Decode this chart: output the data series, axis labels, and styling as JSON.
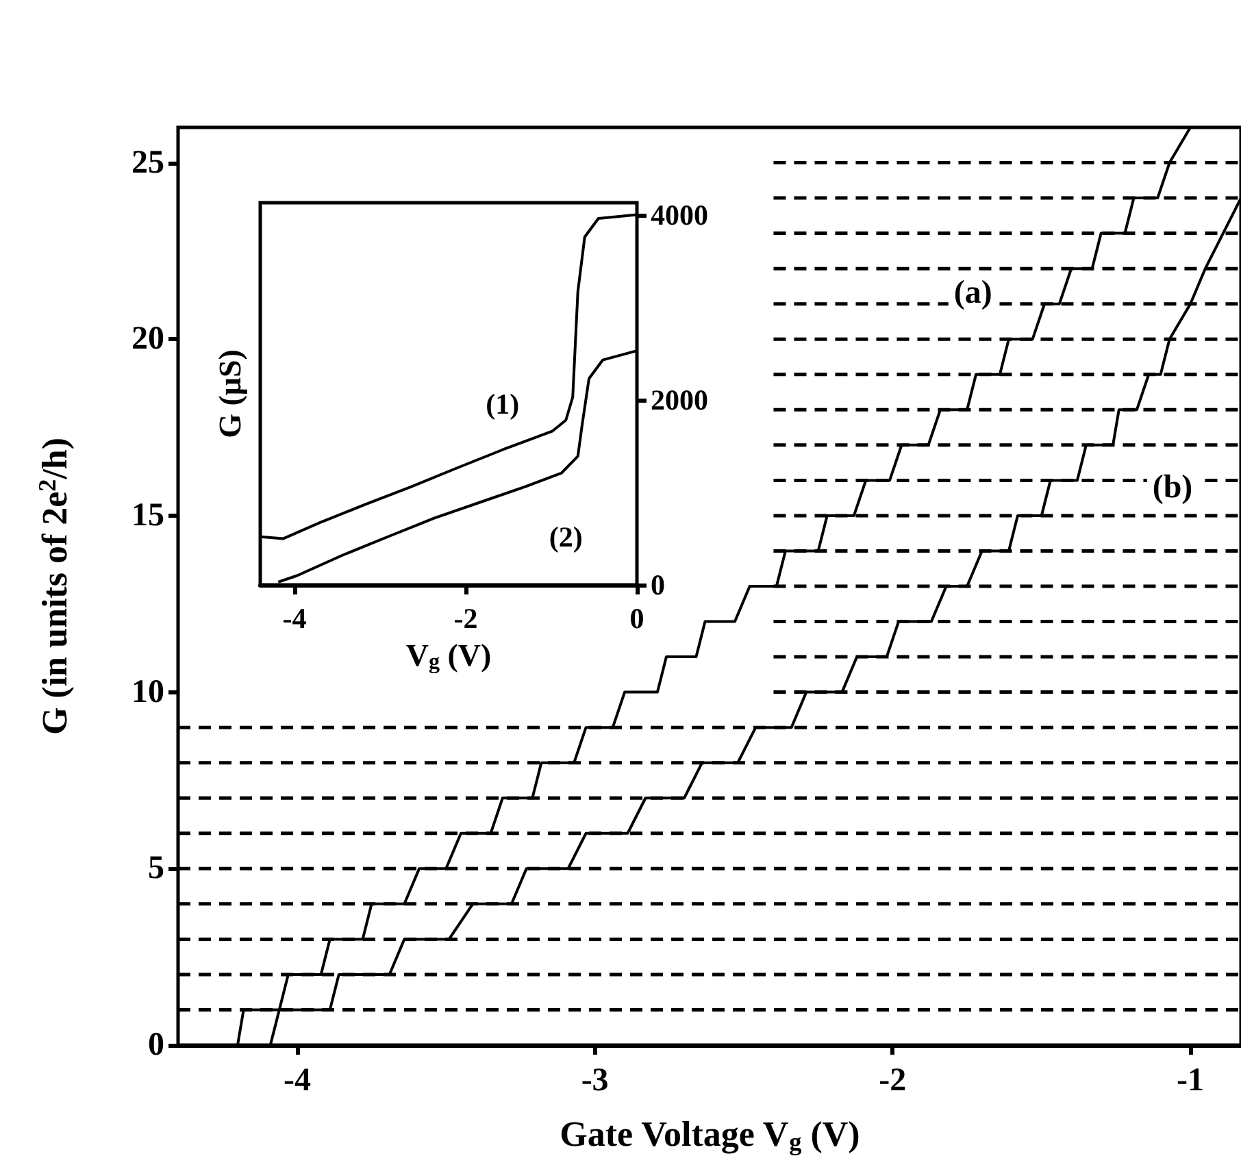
{
  "chart_data": [
    {
      "type": "line",
      "xlabel": "Gate Voltage V$_{g}$ (V)",
      "ylabel": "G (in units of 2e$^{2}$/h)",
      "xlim": [
        -4.4,
        -0.83
      ],
      "xticks": [
        -4,
        -3,
        -2,
        -1
      ],
      "ylim": [
        0,
        26
      ],
      "yticks": [
        0,
        5,
        10,
        15,
        20,
        25
      ],
      "line_style": "solid",
      "annotations": [
        {
          "text": "(a)",
          "x": -1.73,
          "y": 21.3
        },
        {
          "text": "(b)",
          "x": -1.06,
          "y": 15.8
        }
      ],
      "series": [
        {
          "color": "#000000",
          "x": [
            -4.2,
            -4.18,
            -4.06,
            -4.03,
            -3.92,
            -3.89,
            -3.78,
            -3.75,
            -3.64,
            -3.59,
            -3.5,
            -3.45,
            -3.35,
            -3.31,
            -3.21,
            -3.18,
            -3.07,
            -3.03,
            -2.94,
            -2.9,
            -2.79,
            -2.76,
            -2.66,
            -2.63,
            -2.53,
            -2.48,
            -2.39,
            -2.36,
            -2.25,
            -2.22,
            -2.13,
            -2.09,
            -2.01,
            -1.97,
            -1.88,
            -1.84,
            -1.75,
            -1.72,
            -1.64,
            -1.61,
            -1.53,
            -1.49,
            -1.44,
            -1.4,
            -1.33,
            -1.3,
            -1.22,
            -1.19,
            -1.11,
            -1.07,
            -1.0
          ],
          "values": [
            0,
            1,
            1,
            2,
            2,
            3,
            3,
            4,
            4,
            5,
            5,
            6,
            6,
            7,
            7,
            8,
            8,
            9,
            9,
            10,
            10,
            11,
            11,
            12,
            12,
            13,
            13,
            14,
            14,
            15,
            15,
            16,
            16,
            17,
            17,
            18,
            18,
            19,
            19,
            20,
            20,
            21,
            21,
            22,
            22,
            23,
            23,
            24,
            24,
            25,
            26
          ]
        },
        {
          "color": "#000000",
          "x": [
            -4.09,
            -4.06,
            -3.89,
            -3.86,
            -3.69,
            -3.64,
            -3.49,
            -3.41,
            -3.28,
            -3.23,
            -3.09,
            -3.03,
            -2.89,
            -2.83,
            -2.7,
            -2.64,
            -2.52,
            -2.46,
            -2.34,
            -2.29,
            -2.17,
            -2.12,
            -2.02,
            -1.98,
            -1.87,
            -1.82,
            -1.75,
            -1.7,
            -1.61,
            -1.58,
            -1.5,
            -1.47,
            -1.38,
            -1.35,
            -1.26,
            -1.24,
            -1.18,
            -1.14,
            -1.1,
            -1.07,
            -1.0,
            -0.95,
            -0.89,
            -0.83
          ],
          "values": [
            0,
            1,
            1,
            2,
            2,
            3,
            3,
            4,
            4,
            5,
            5,
            6,
            6,
            7,
            7,
            8,
            8,
            9,
            9,
            10,
            10,
            11,
            11,
            12,
            12,
            13,
            13,
            14,
            14,
            15,
            15,
            16,
            16,
            17,
            17,
            18,
            18,
            19,
            19,
            20,
            21,
            22,
            23,
            24
          ]
        },
        {
          "color": "#000000",
          "line_style": "dashed",
          "x": [
            -4.4,
            -0.83
          ],
          "values": [
            1,
            1
          ]
        },
        {
          "color": "#000000",
          "line_style": "dashed",
          "x": [
            -4.4,
            -0.83
          ],
          "values": [
            2,
            2
          ]
        },
        {
          "color": "#000000",
          "line_style": "dashed",
          "x": [
            -4.4,
            -0.83
          ],
          "values": [
            3,
            3
          ]
        },
        {
          "color": "#000000",
          "line_style": "dashed",
          "x": [
            -4.4,
            -0.83
          ],
          "values": [
            4,
            4
          ]
        },
        {
          "color": "#000000",
          "line_style": "dashed",
          "x": [
            -4.4,
            -0.83
          ],
          "values": [
            5,
            5
          ]
        },
        {
          "color": "#000000",
          "line_style": "dashed",
          "x": [
            -4.4,
            -0.83
          ],
          "values": [
            6,
            6
          ]
        },
        {
          "color": "#000000",
          "line_style": "dashed",
          "x": [
            -4.4,
            -0.83
          ],
          "values": [
            7,
            7
          ]
        },
        {
          "color": "#000000",
          "line_style": "dashed",
          "x": [
            -4.4,
            -0.83
          ],
          "values": [
            8,
            8
          ]
        },
        {
          "color": "#000000",
          "line_style": "dashed",
          "x": [
            -4.4,
            -0.83
          ],
          "values": [
            9,
            9
          ]
        },
        {
          "color": "#000000",
          "line_style": "dashed",
          "x": [
            -2.4,
            -0.83
          ],
          "values": [
            10,
            10
          ]
        },
        {
          "color": "#000000",
          "line_style": "dashed",
          "x": [
            -2.4,
            -0.83
          ],
          "values": [
            11,
            11
          ]
        },
        {
          "color": "#000000",
          "line_style": "dashed",
          "x": [
            -2.4,
            -0.83
          ],
          "values": [
            12,
            12
          ]
        },
        {
          "color": "#000000",
          "line_style": "dashed",
          "x": [
            -2.4,
            -0.83
          ],
          "values": [
            13,
            13
          ]
        },
        {
          "color": "#000000",
          "line_style": "dashed",
          "x": [
            -2.4,
            -0.83
          ],
          "values": [
            14,
            14
          ]
        },
        {
          "color": "#000000",
          "line_style": "dashed",
          "x": [
            -2.4,
            -0.83
          ],
          "values": [
            15,
            15
          ]
        },
        {
          "color": "#000000",
          "line_style": "dashed",
          "x": [
            -2.4,
            -0.83
          ],
          "values": [
            16,
            16
          ]
        },
        {
          "color": "#000000",
          "line_style": "dashed",
          "x": [
            -2.4,
            -0.83
          ],
          "values": [
            17,
            17
          ]
        },
        {
          "color": "#000000",
          "line_style": "dashed",
          "x": [
            -2.4,
            -0.83
          ],
          "values": [
            18,
            18
          ]
        },
        {
          "color": "#000000",
          "line_style": "dashed",
          "x": [
            -2.4,
            -0.83
          ],
          "values": [
            19,
            19
          ]
        },
        {
          "color": "#000000",
          "line_style": "dashed",
          "x": [
            -2.4,
            -0.83
          ],
          "values": [
            20,
            20
          ]
        },
        {
          "color": "#000000",
          "line_style": "dashed",
          "x": [
            -2.4,
            -0.83
          ],
          "values": [
            21,
            21
          ]
        },
        {
          "color": "#000000",
          "line_style": "dashed",
          "x": [
            -2.4,
            -0.83
          ],
          "values": [
            22,
            22
          ]
        },
        {
          "color": "#000000",
          "line_style": "dashed",
          "x": [
            -2.4,
            -0.83
          ],
          "values": [
            23,
            23
          ]
        },
        {
          "color": "#000000",
          "line_style": "dashed",
          "x": [
            -2.4,
            -0.83
          ],
          "values": [
            24,
            24
          ]
        },
        {
          "color": "#000000",
          "line_style": "dashed",
          "x": [
            -2.4,
            -0.83
          ],
          "values": [
            25,
            25
          ]
        }
      ]
    },
    {
      "type": "line",
      "xlabel": "V$_{g}$ (V)",
      "ylabel": "G (μS)",
      "xlim": [
        -4.4,
        0
      ],
      "xticks": [
        -4,
        -2,
        0
      ],
      "ylim": [
        0,
        4130
      ],
      "yticks": [
        0,
        2000,
        4000
      ],
      "line_style": "solid",
      "annotations": [
        {
          "text": "(1)",
          "x": -1.57,
          "y": 1955
        },
        {
          "text": "(2)",
          "x": -0.83,
          "y": 520
        }
      ],
      "series": [
        {
          "color": "#000000",
          "x": [
            -4.4,
            -4.13,
            -3.71,
            -3.17,
            -2.64,
            -2.11,
            -1.57,
            -0.99,
            -0.83,
            -0.75,
            -0.69,
            -0.61,
            -0.45,
            0
          ],
          "values": [
            520,
            500,
            670,
            870,
            1060,
            1260,
            1460,
            1660,
            1780,
            2030,
            3170,
            3760,
            3960,
            4000
          ]
        },
        {
          "color": "#000000",
          "x": [
            -4.19,
            -3.97,
            -3.44,
            -2.91,
            -2.37,
            -1.84,
            -1.31,
            -0.88,
            -0.69,
            -0.64,
            -0.56,
            -0.4,
            0
          ],
          "values": [
            30,
            100,
            320,
            520,
            720,
            890,
            1060,
            1210,
            1390,
            1730,
            2230,
            2430,
            2530
          ]
        }
      ]
    }
  ]
}
